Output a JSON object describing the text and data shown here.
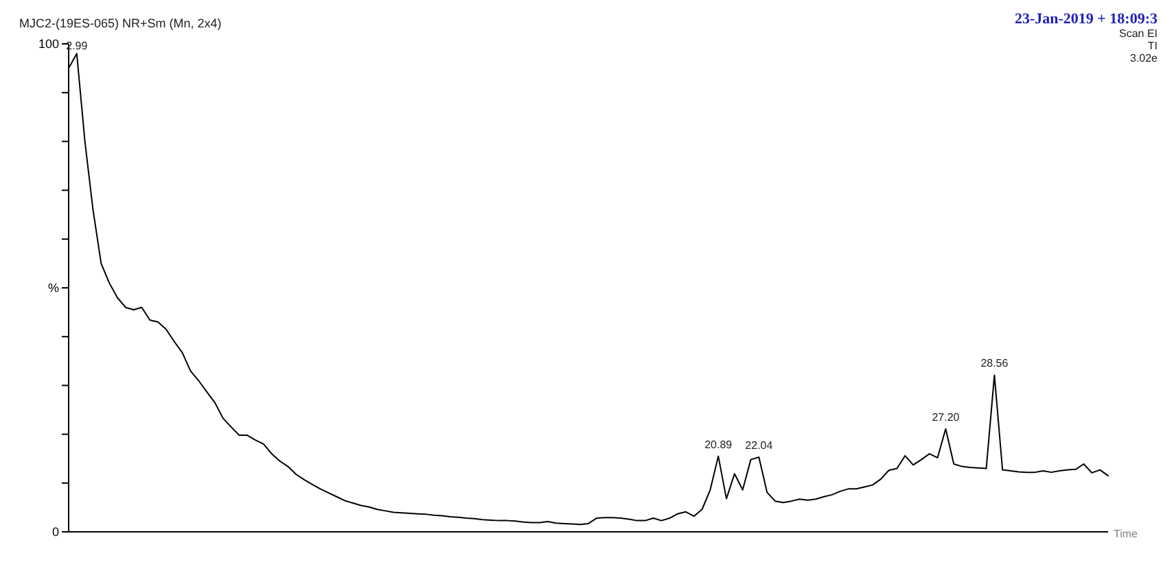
{
  "chart_data": {
    "type": "line",
    "title": "MJC2-(19ES-065) NR+Sm (Mn, 2x4)",
    "xlabel": "Time",
    "annotations": [
      "23-Jan-2019 + 18:09:3",
      "Scan EI",
      "TI",
      "3.02e",
      {
        "text": "2.99",
        "y": 98
      },
      {
        "text": "20.89",
        "y": 15.5
      },
      {
        "text": "22.04",
        "y": 15.3
      },
      {
        "text": "27.20",
        "y": 21.1
      },
      {
        "text": "28.56",
        "y": 32.1
      }
    ],
    "categories": [
      null,
      null,
      null,
      null,
      null,
      null,
      null,
      null,
      null,
      null,
      null,
      null,
      null,
      null,
      null,
      null,
      null,
      null,
      null,
      null,
      null,
      null,
      null,
      null,
      null,
      null,
      null,
      null,
      null,
      null,
      null,
      null,
      null,
      null,
      null,
      null,
      null,
      null,
      null,
      null,
      null,
      null,
      null,
      null,
      null,
      null,
      null,
      null,
      null,
      null,
      null,
      null,
      null,
      null,
      null,
      null,
      null,
      null,
      null,
      null,
      null,
      null,
      null,
      null,
      null,
      null,
      null,
      null,
      null,
      null,
      null,
      null,
      null,
      null,
      null,
      null,
      null,
      null,
      null,
      null,
      null,
      null,
      null,
      null,
      null,
      null,
      null,
      null,
      null,
      null,
      null,
      null,
      null,
      null,
      null,
      null,
      null,
      null,
      null,
      null,
      null,
      null,
      null,
      null,
      null,
      null,
      null,
      null,
      null,
      null,
      null,
      null,
      null,
      null,
      null,
      null,
      null,
      null,
      null,
      null,
      null,
      null,
      null,
      null,
      null,
      null,
      null,
      null,
      null
    ],
    "series": [
      {
        "color": "#000000",
        "values": [
          95,
          98,
          80,
          66,
          55,
          51,
          48,
          46,
          45.5,
          46,
          43.4,
          43,
          41.5,
          39,
          36.7,
          33,
          31,
          28.7,
          26.5,
          23.3,
          21.5,
          19.8,
          19.8,
          18.8,
          18,
          16,
          14.5,
          13.4,
          11.8,
          10.7,
          9.7,
          8.8,
          8,
          7.2,
          6.4,
          5.9,
          5.4,
          5.1,
          4.6,
          4.3,
          4,
          3.9,
          3.8,
          3.7,
          3.6,
          3.4,
          3.3,
          3.1,
          3,
          2.8,
          2.7,
          2.5,
          2.4,
          2.3,
          2.3,
          2.2,
          2,
          1.9,
          1.9,
          2.1,
          1.8,
          1.7,
          1.6,
          1.5,
          1.7,
          2.8,
          2.9,
          2.9,
          2.8,
          2.6,
          2.3,
          2.3,
          2.8,
          2.3,
          2.8,
          3.7,
          4.1,
          3.2,
          4.6,
          8.6,
          15.5,
          6.8,
          11.9,
          8.6,
          14.8,
          15.3,
          8.1,
          6.3,
          6,
          6.3,
          6.7,
          6.5,
          6.7,
          7.2,
          7.6,
          8.3,
          8.8,
          8.8,
          9.2,
          9.6,
          10.8,
          12.6,
          13,
          15.6,
          13.7,
          14.8,
          16,
          15.2,
          21.1,
          13.9,
          13.4,
          13.2,
          13.1,
          13,
          32.1,
          12.7,
          12.5,
          12.3,
          12.2,
          12.2,
          12.5,
          12.2,
          12.5,
          12.7,
          12.8,
          13.9,
          12.1,
          12.7,
          11.5
        ]
      }
    ],
    "ylim": [
      0,
      100
    ],
    "yticks": [
      0,
      {
        "value": 10,
        "label": null
      },
      {
        "value": 20,
        "label": null
      },
      {
        "value": 30,
        "label": null
      },
      {
        "value": 40,
        "label": null
      },
      {
        "value": 50,
        "label": "%"
      },
      {
        "value": 60,
        "label": null
      },
      {
        "value": 70,
        "label": null
      },
      {
        "value": 80,
        "label": null
      },
      {
        "value": 90,
        "label": null
      },
      100
    ],
    "grid": false,
    "legend": false,
    "marker": "none",
    "line_style": "solid"
  }
}
